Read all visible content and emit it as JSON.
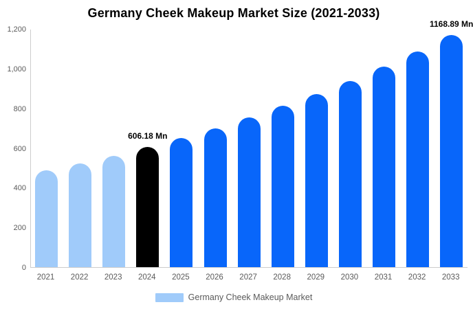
{
  "title": "Germany Cheek Makeup Market Size (2021-2033)",
  "legend": {
    "label": "Germany Cheek Makeup Market",
    "swatch_color": "#a0cbfa"
  },
  "colors": {
    "historical_bar": "#a0cbfa",
    "highlight_bar": "#000000",
    "forecast_bar": "#0866fa",
    "axis_line": "#cccccc",
    "tick_text": "#5a5a5a",
    "annotation_text": "#000000",
    "background": "#ffffff"
  },
  "chart_data": {
    "type": "bar",
    "title": "Germany Cheek Makeup Market Size (2021-2033)",
    "xlabel": "",
    "ylabel": "",
    "categories": [
      "2021",
      "2022",
      "2023",
      "2024",
      "2025",
      "2026",
      "2027",
      "2028",
      "2029",
      "2030",
      "2031",
      "2032",
      "2033"
    ],
    "values": [
      487,
      523,
      562,
      606.18,
      650,
      700,
      753,
      812,
      872,
      938,
      1009,
      1086,
      1168.89
    ],
    "bar_color_roles": [
      "historical_bar",
      "historical_bar",
      "historical_bar",
      "highlight_bar",
      "forecast_bar",
      "forecast_bar",
      "forecast_bar",
      "forecast_bar",
      "forecast_bar",
      "forecast_bar",
      "forecast_bar",
      "forecast_bar",
      "forecast_bar"
    ],
    "annotations": [
      {
        "category": "2024",
        "text": "606.18 Mn"
      },
      {
        "category": "2033",
        "text": "1168.89 Mn"
      }
    ],
    "ylim": [
      0,
      1200
    ],
    "yticks": [
      0,
      200,
      400,
      600,
      800,
      1000,
      1200
    ],
    "ytick_labels": [
      "0",
      "200",
      "400",
      "600",
      "800",
      "1,000",
      "1,200"
    ],
    "grid": false,
    "legend_position": "bottom",
    "legend_entries": [
      "Germany Cheek Makeup Market"
    ]
  }
}
